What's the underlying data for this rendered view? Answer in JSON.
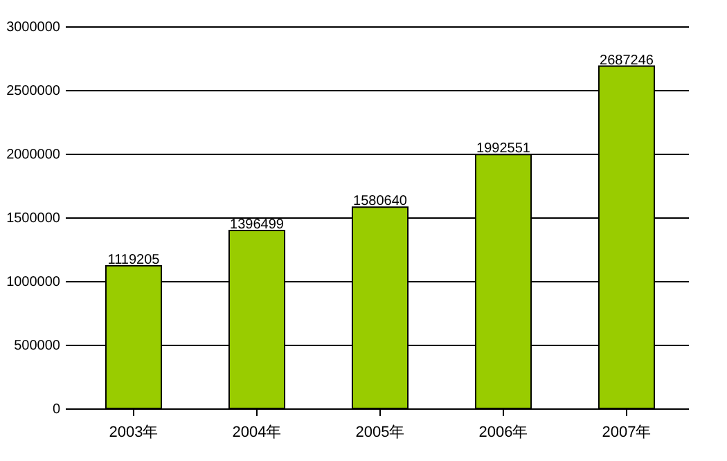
{
  "chart_data": {
    "type": "bar",
    "categories": [
      "2003年",
      "2004年",
      "2005年",
      "2006年",
      "2007年"
    ],
    "values": [
      1119205,
      1396499,
      1580640,
      1992551,
      2687246
    ],
    "color": "#99cc00",
    "ylim": [
      0,
      3000000
    ],
    "yticks": [
      0,
      {
        "value": 500000,
        "label": "500000"
      },
      {
        "value": 1000000,
        "label": "1000000"
      },
      {
        "value": 1500000,
        "label": "1500000"
      },
      {
        "value": 2000000,
        "label": "2000000"
      },
      {
        "value": 2500000,
        "label": "2500000"
      },
      {
        "value": 3000000,
        "label": "3000000"
      }
    ],
    "grid": "y",
    "data_labels": true
  }
}
